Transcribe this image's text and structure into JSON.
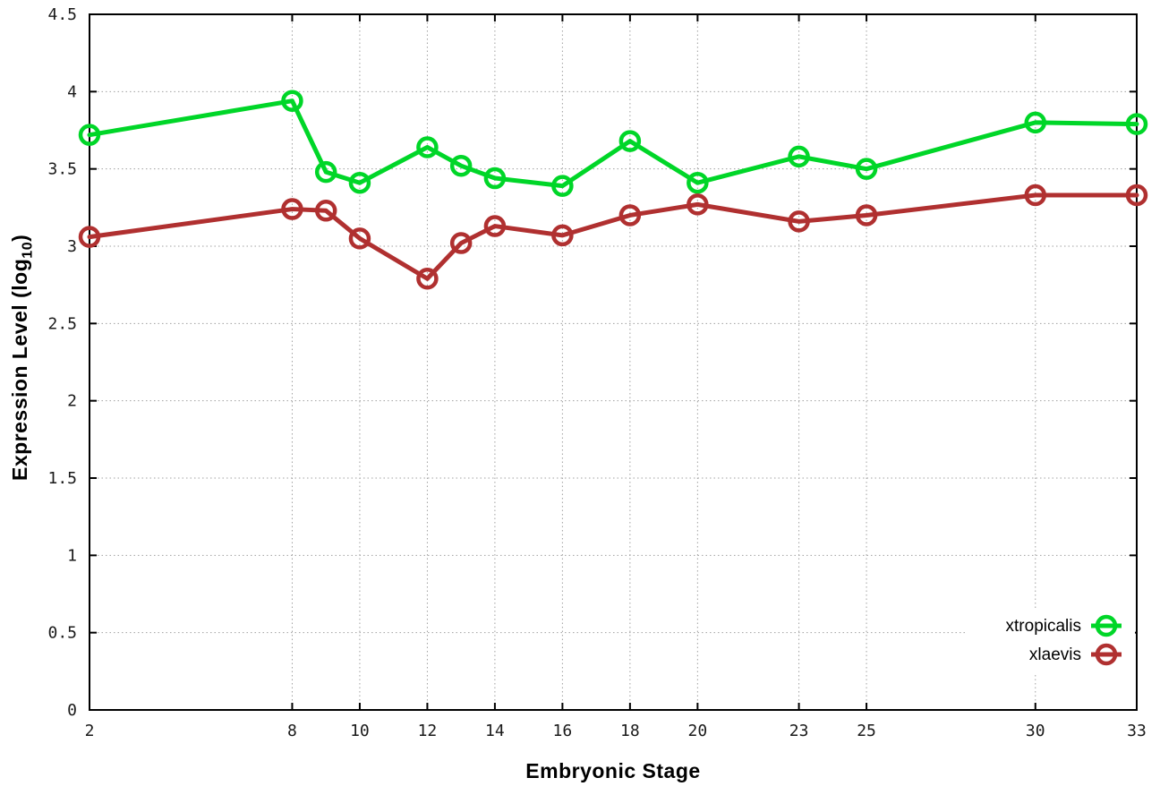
{
  "figure": {
    "xlabel": "Embryonic Stage",
    "ylabel": {
      "pre": "Expression Level (log",
      "sub": "10",
      "post": ")"
    }
  },
  "chart_data": {
    "type": "line",
    "title": "",
    "xlabel": "Embryonic Stage",
    "ylabel": "Expression Level (log10)",
    "x": [
      2,
      8,
      9,
      10,
      12,
      13,
      14,
      16,
      18,
      20,
      23,
      25,
      30,
      33
    ],
    "series": [
      {
        "name": "xtropicalis",
        "color": "#00D628",
        "values": [
          3.72,
          3.94,
          3.48,
          3.41,
          3.64,
          3.52,
          3.44,
          3.39,
          3.68,
          3.41,
          3.58,
          3.5,
          3.8,
          3.79
        ]
      },
      {
        "name": "xlaevis",
        "color": "#B03030",
        "values": [
          3.06,
          3.24,
          3.23,
          3.05,
          2.79,
          3.02,
          3.13,
          3.07,
          3.2,
          3.27,
          3.16,
          3.2,
          3.33,
          3.33
        ]
      }
    ],
    "xlim": [
      2,
      33
    ],
    "ylim": [
      0,
      4.5
    ],
    "xticks": [
      2,
      8,
      10,
      12,
      14,
      16,
      18,
      20,
      23,
      25,
      30,
      33
    ],
    "yticks": [
      0,
      0.5,
      1,
      1.5,
      2,
      2.5,
      3,
      3.5,
      4,
      4.5
    ],
    "grid": true,
    "grid_style": "dotted",
    "legend_position": "inside-bottom-right",
    "marker": "open-circle",
    "border": "box",
    "background": "#ffffff"
  }
}
